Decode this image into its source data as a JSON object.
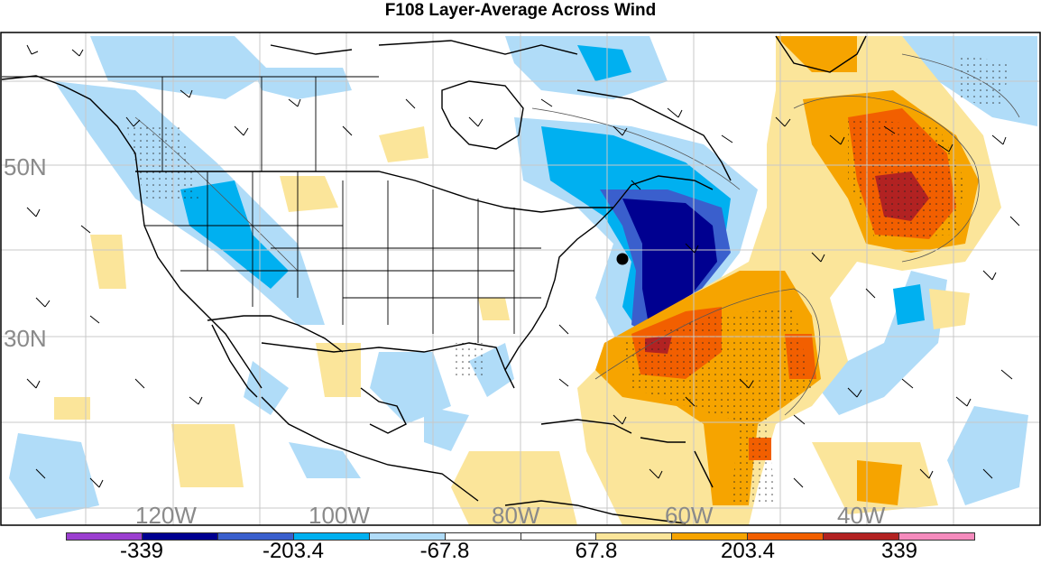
{
  "title": "F108 Layer-Average Across Wind",
  "lon_labels": [
    "120W",
    "100W",
    "80W",
    "60W",
    "40W"
  ],
  "lat_labels": [
    "50N",
    "30N"
  ],
  "colorbar": {
    "colors": [
      "#9b3fd0",
      "#000090",
      "#3a5fcd",
      "#00b0f0",
      "#b0dcf8",
      "#ffffff",
      "#ffffff",
      "#fbe59a",
      "#f6a400",
      "#f25f00",
      "#b22222",
      "#f58bbd"
    ],
    "labels": [
      "-339",
      "-203.4",
      "-67.8",
      "67.8",
      "203.4",
      "339"
    ]
  },
  "map_colors": {
    "land_outline": "#000000",
    "grid": "#c8c8c8",
    "marker": "#000000"
  }
}
